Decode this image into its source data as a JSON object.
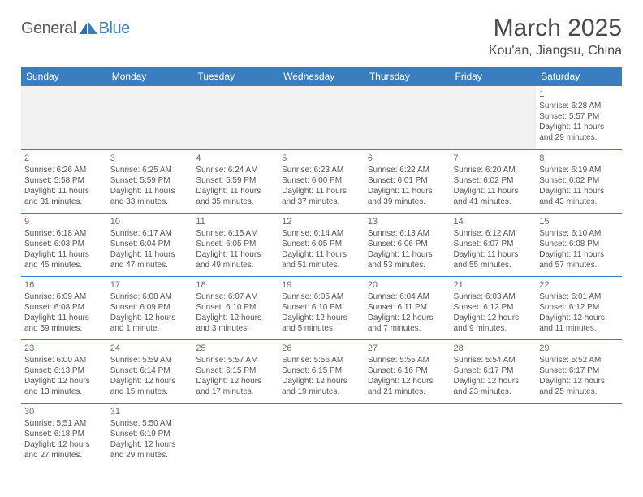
{
  "logo": {
    "part1": "General",
    "part2": "Blue"
  },
  "title": "March 2025",
  "location": "Kou'an, Jiangsu, China",
  "header_bg": "#3a7ebf",
  "days": [
    "Sunday",
    "Monday",
    "Tuesday",
    "Wednesday",
    "Thursday",
    "Friday",
    "Saturday"
  ],
  "weeks": [
    [
      null,
      null,
      null,
      null,
      null,
      null,
      {
        "n": "1",
        "sr": "6:28 AM",
        "ss": "5:57 PM",
        "dl": "11 hours and 29 minutes."
      }
    ],
    [
      {
        "n": "2",
        "sr": "6:26 AM",
        "ss": "5:58 PM",
        "dl": "11 hours and 31 minutes."
      },
      {
        "n": "3",
        "sr": "6:25 AM",
        "ss": "5:59 PM",
        "dl": "11 hours and 33 minutes."
      },
      {
        "n": "4",
        "sr": "6:24 AM",
        "ss": "5:59 PM",
        "dl": "11 hours and 35 minutes."
      },
      {
        "n": "5",
        "sr": "6:23 AM",
        "ss": "6:00 PM",
        "dl": "11 hours and 37 minutes."
      },
      {
        "n": "6",
        "sr": "6:22 AM",
        "ss": "6:01 PM",
        "dl": "11 hours and 39 minutes."
      },
      {
        "n": "7",
        "sr": "6:20 AM",
        "ss": "6:02 PM",
        "dl": "11 hours and 41 minutes."
      },
      {
        "n": "8",
        "sr": "6:19 AM",
        "ss": "6:02 PM",
        "dl": "11 hours and 43 minutes."
      }
    ],
    [
      {
        "n": "9",
        "sr": "6:18 AM",
        "ss": "6:03 PM",
        "dl": "11 hours and 45 minutes."
      },
      {
        "n": "10",
        "sr": "6:17 AM",
        "ss": "6:04 PM",
        "dl": "11 hours and 47 minutes."
      },
      {
        "n": "11",
        "sr": "6:15 AM",
        "ss": "6:05 PM",
        "dl": "11 hours and 49 minutes."
      },
      {
        "n": "12",
        "sr": "6:14 AM",
        "ss": "6:05 PM",
        "dl": "11 hours and 51 minutes."
      },
      {
        "n": "13",
        "sr": "6:13 AM",
        "ss": "6:06 PM",
        "dl": "11 hours and 53 minutes."
      },
      {
        "n": "14",
        "sr": "6:12 AM",
        "ss": "6:07 PM",
        "dl": "11 hours and 55 minutes."
      },
      {
        "n": "15",
        "sr": "6:10 AM",
        "ss": "6:08 PM",
        "dl": "11 hours and 57 minutes."
      }
    ],
    [
      {
        "n": "16",
        "sr": "6:09 AM",
        "ss": "6:08 PM",
        "dl": "11 hours and 59 minutes."
      },
      {
        "n": "17",
        "sr": "6:08 AM",
        "ss": "6:09 PM",
        "dl": "12 hours and 1 minute."
      },
      {
        "n": "18",
        "sr": "6:07 AM",
        "ss": "6:10 PM",
        "dl": "12 hours and 3 minutes."
      },
      {
        "n": "19",
        "sr": "6:05 AM",
        "ss": "6:10 PM",
        "dl": "12 hours and 5 minutes."
      },
      {
        "n": "20",
        "sr": "6:04 AM",
        "ss": "6:11 PM",
        "dl": "12 hours and 7 minutes."
      },
      {
        "n": "21",
        "sr": "6:03 AM",
        "ss": "6:12 PM",
        "dl": "12 hours and 9 minutes."
      },
      {
        "n": "22",
        "sr": "6:01 AM",
        "ss": "6:12 PM",
        "dl": "12 hours and 11 minutes."
      }
    ],
    [
      {
        "n": "23",
        "sr": "6:00 AM",
        "ss": "6:13 PM",
        "dl": "12 hours and 13 minutes."
      },
      {
        "n": "24",
        "sr": "5:59 AM",
        "ss": "6:14 PM",
        "dl": "12 hours and 15 minutes."
      },
      {
        "n": "25",
        "sr": "5:57 AM",
        "ss": "6:15 PM",
        "dl": "12 hours and 17 minutes."
      },
      {
        "n": "26",
        "sr": "5:56 AM",
        "ss": "6:15 PM",
        "dl": "12 hours and 19 minutes."
      },
      {
        "n": "27",
        "sr": "5:55 AM",
        "ss": "6:16 PM",
        "dl": "12 hours and 21 minutes."
      },
      {
        "n": "28",
        "sr": "5:54 AM",
        "ss": "6:17 PM",
        "dl": "12 hours and 23 minutes."
      },
      {
        "n": "29",
        "sr": "5:52 AM",
        "ss": "6:17 PM",
        "dl": "12 hours and 25 minutes."
      }
    ],
    [
      {
        "n": "30",
        "sr": "5:51 AM",
        "ss": "6:18 PM",
        "dl": "12 hours and 27 minutes."
      },
      {
        "n": "31",
        "sr": "5:50 AM",
        "ss": "6:19 PM",
        "dl": "12 hours and 29 minutes."
      },
      null,
      null,
      null,
      null,
      null
    ]
  ],
  "labels": {
    "sunrise": "Sunrise: ",
    "sunset": "Sunset: ",
    "daylight": "Daylight: "
  }
}
